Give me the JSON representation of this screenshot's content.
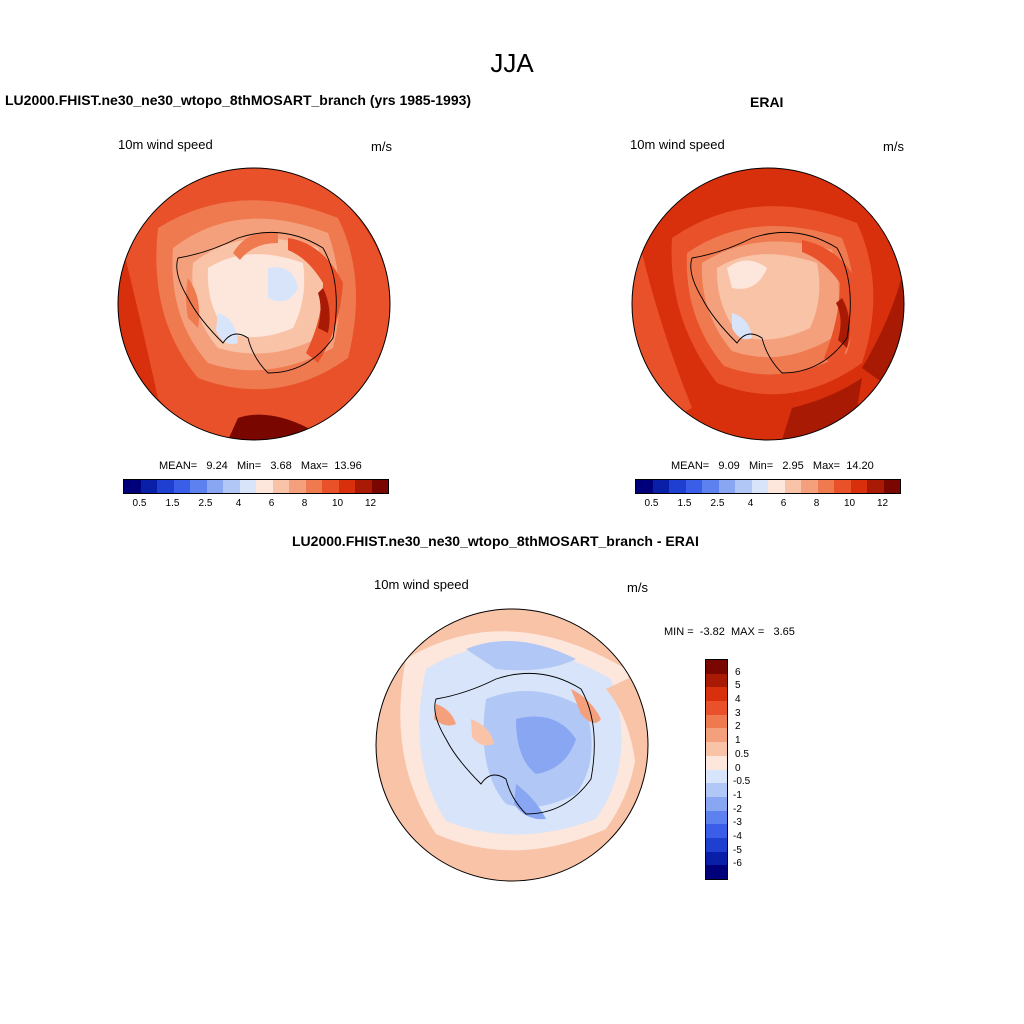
{
  "figure": {
    "season": "JJA"
  },
  "panels": [
    {
      "title": "LU2000.FHIST.ne30_ne30_wtopo_8thMOSART_branch (yrs 1985-1993)",
      "variable": "10m wind speed",
      "units": "m/s",
      "stats": {
        "mean_label": "MEAN=",
        "mean": "9.24",
        "min_label": "Min=",
        "min": "3.68",
        "max_label": "Max=",
        "max": "13.96"
      }
    },
    {
      "title": "ERAI",
      "variable": "10m wind speed",
      "units": "m/s",
      "stats": {
        "mean_label": "MEAN=",
        "mean": "9.09",
        "min_label": "Min=",
        "min": "2.95",
        "max_label": "Max=",
        "max": "14.20"
      }
    },
    {
      "title": "LU2000.FHIST.ne30_ne30_wtopo_8thMOSART_branch - ERAI",
      "variable": "10m wind speed",
      "units": "m/s",
      "stats": {
        "min_label": "MIN =",
        "min": "-3.82",
        "max_label": "MAX =",
        "max": "3.65"
      }
    }
  ],
  "colorbar_speed": {
    "colors": [
      "#00007a",
      "#0a1fa8",
      "#1f3fd1",
      "#3a5ee8",
      "#5d82ef",
      "#88a6f2",
      "#b1c7f6",
      "#d8e4f9",
      "#fde7dc",
      "#f9c3a8",
      "#f5a07c",
      "#f07a4f",
      "#e9512a",
      "#d82f0d",
      "#a81a04",
      "#7a0600"
    ],
    "tick_labels": [
      "0.5",
      "1.5",
      "2.5",
      "4",
      "6",
      "8",
      "10",
      "12"
    ]
  },
  "colorbar_diff": {
    "colors": [
      "#7a0600",
      "#a81a04",
      "#d82f0d",
      "#e9512a",
      "#f07a4f",
      "#f5a07c",
      "#f9c3a8",
      "#fde7dc",
      "#d8e4f9",
      "#b1c7f6",
      "#88a6f2",
      "#5d82ef",
      "#3a5ee8",
      "#1f3fd1",
      "#0a1fa8",
      "#00007a"
    ],
    "tick_labels": [
      "6",
      "5",
      "4",
      "3",
      "2",
      "1",
      "0.5",
      "0",
      "-0.5",
      "-1",
      "-2",
      "-3",
      "-4",
      "-5",
      "-6"
    ]
  }
}
